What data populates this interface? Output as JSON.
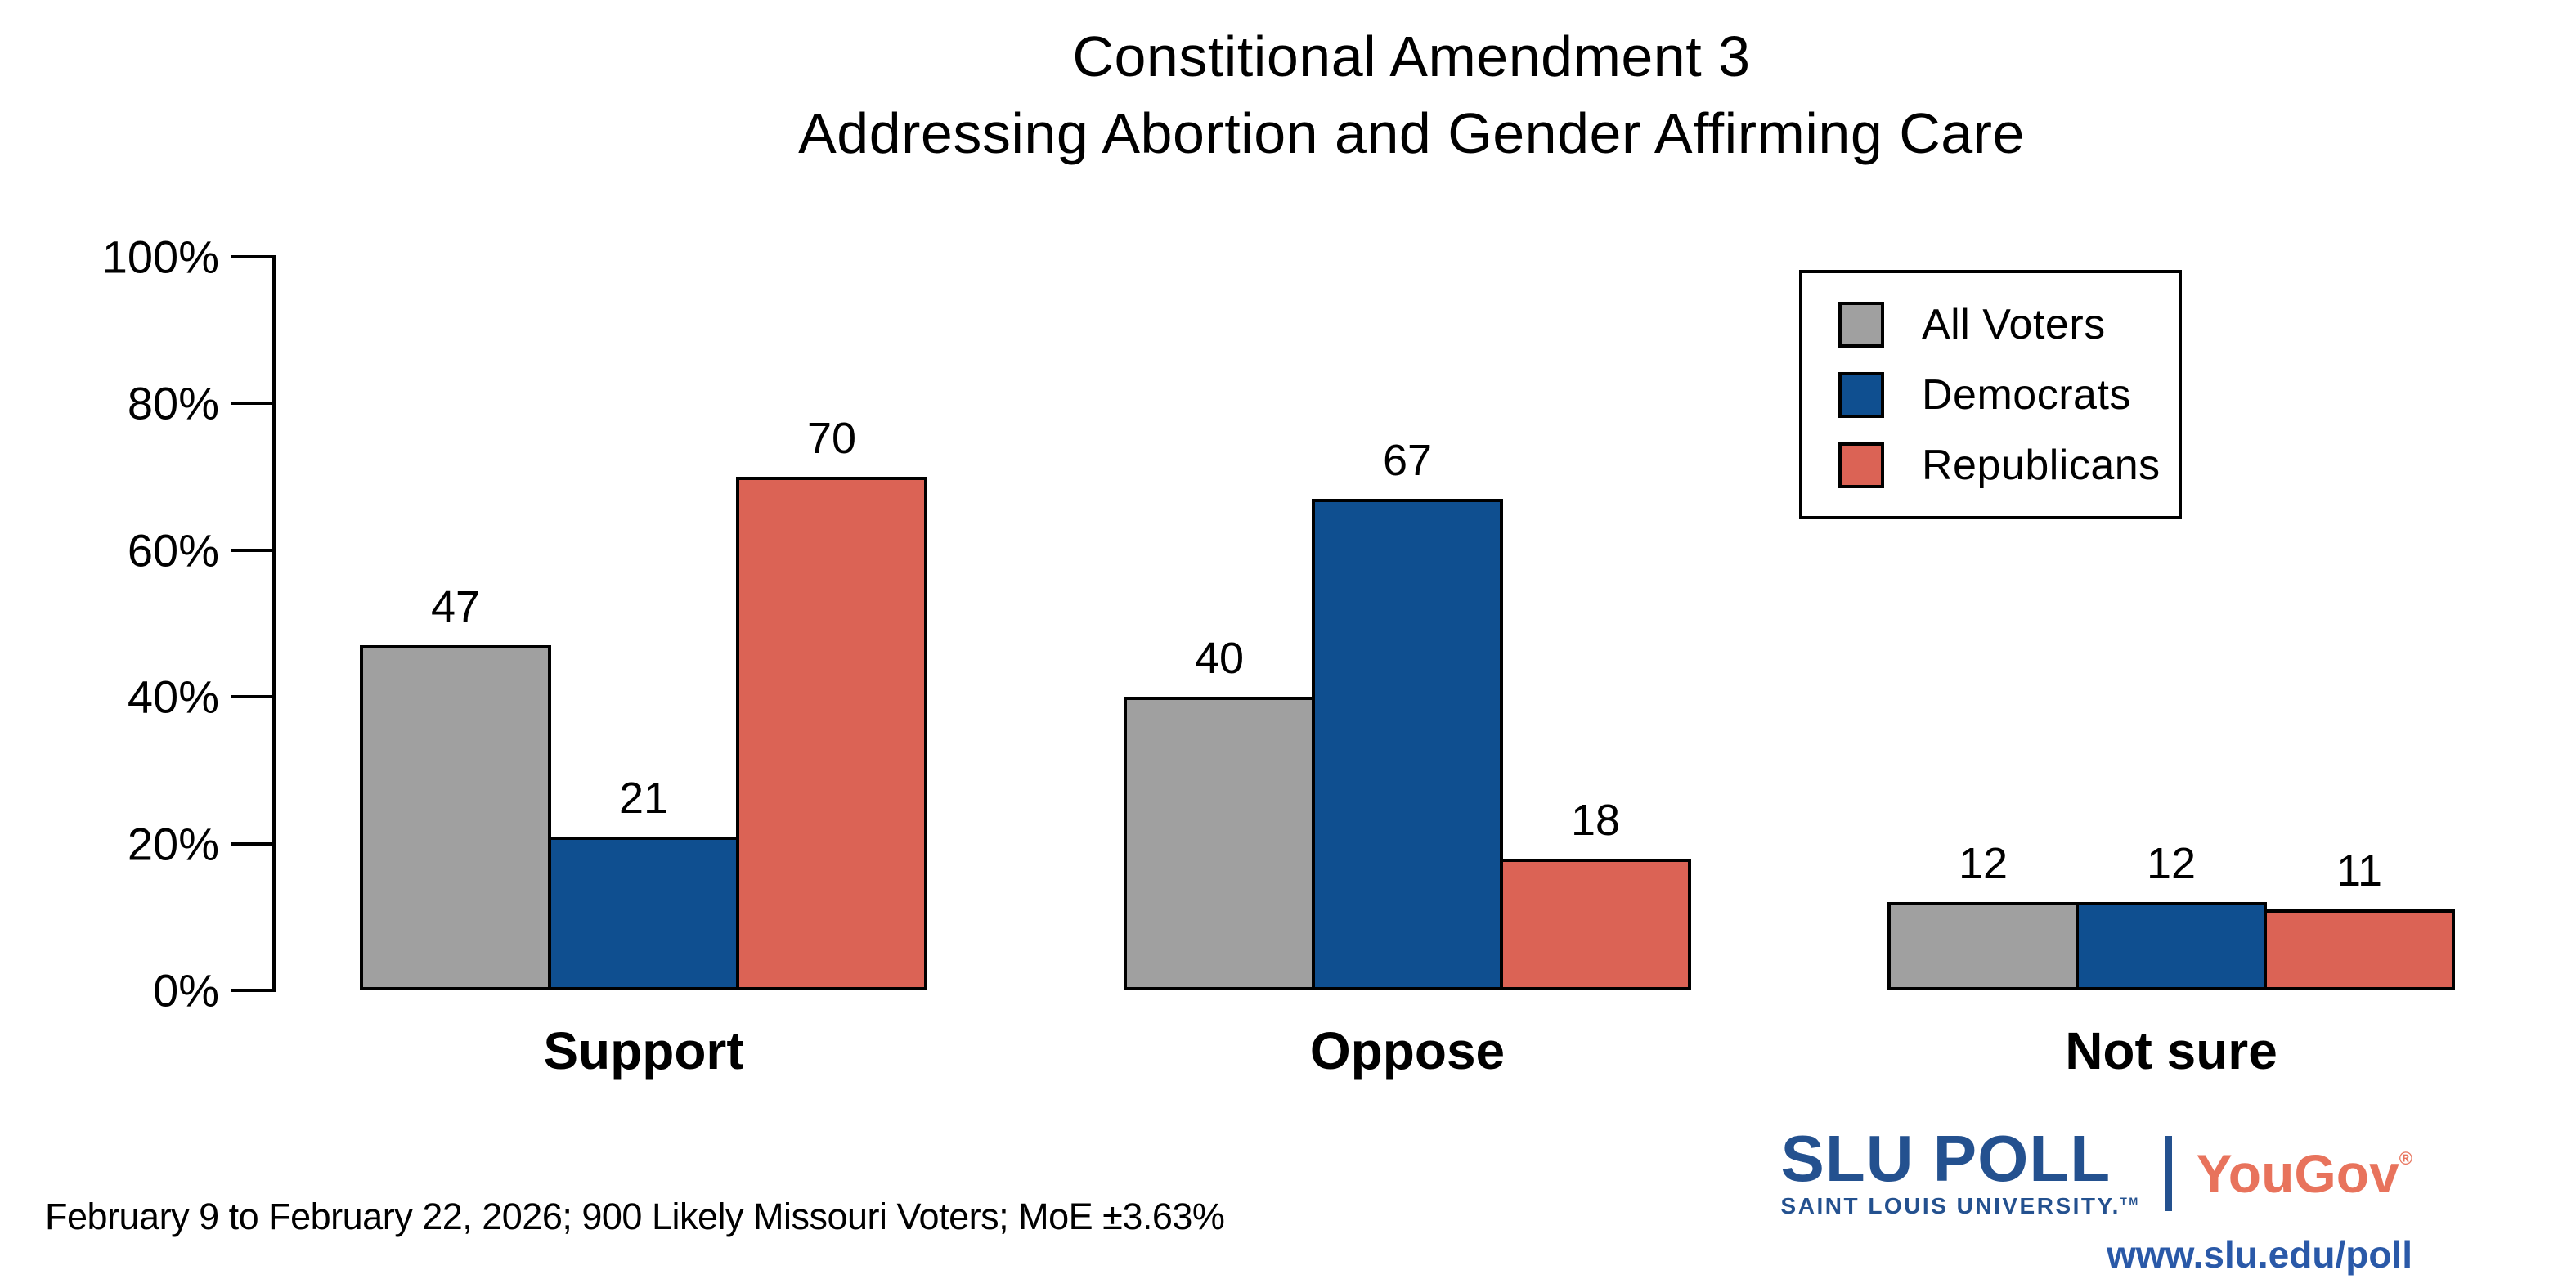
{
  "title": {
    "line1": "Constitional Amendment 3",
    "line2": "Addressing Abortion and Gender Affirming Care"
  },
  "chart_data": {
    "type": "bar",
    "categories": [
      "Support",
      "Oppose",
      "Not sure"
    ],
    "series": [
      {
        "name": "All Voters",
        "color": "#A0A0A0",
        "values": [
          47,
          40,
          12
        ]
      },
      {
        "name": "Democrats",
        "color": "#0F4F90",
        "values": [
          21,
          67,
          12
        ]
      },
      {
        "name": "Republicans",
        "color": "#DB6355",
        "values": [
          70,
          18,
          11
        ]
      }
    ],
    "value_suffix": "%",
    "ylim": [
      0,
      100
    ],
    "yticks": [
      0,
      20,
      40,
      60,
      80,
      100
    ],
    "ytick_labels": [
      "0%",
      "20%",
      "40%",
      "60%",
      "80%",
      "100%"
    ],
    "grid": false,
    "legend_position": "top-right",
    "bar_outline_color": "#000000"
  },
  "footer": {
    "note": "February 9 to February 22, 2026; 900 Likely Missouri Voters; MoE ±3.63%"
  },
  "branding": {
    "slu_poll": "SLU POLL",
    "slu_sub": "SAINT LOUIS UNIVERSITY.",
    "slu_tm": "TM",
    "yougov": "YouGov",
    "yougov_reg": "®",
    "url": "www.slu.edu/poll",
    "slu_color": "#24518F",
    "yougov_color": "#E8735C",
    "url_color": "#2A59A8"
  }
}
